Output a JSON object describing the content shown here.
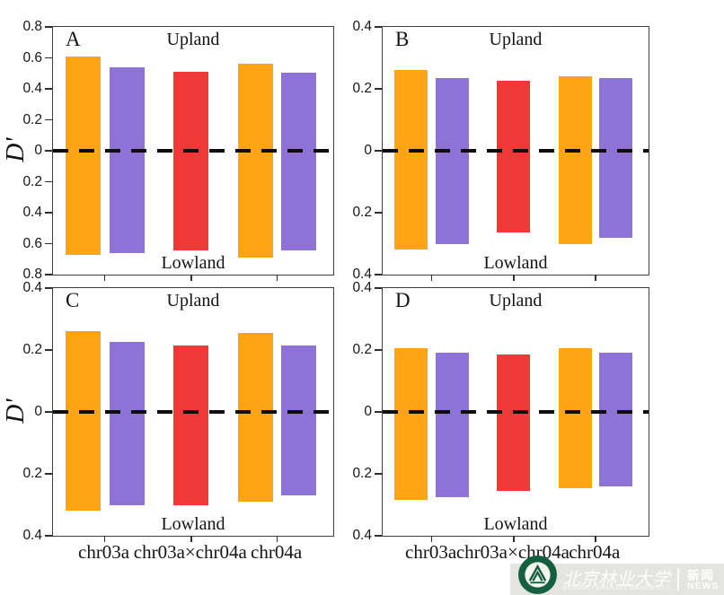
{
  "figure": {
    "watermark": {
      "university_cn": "北京林业大学",
      "university_en": "BEIJING FORESTRY UNIVERSITY",
      "news_cn": "新闻",
      "news_en": "NEWS"
    }
  },
  "chart_data": {
    "type": "bar",
    "title": "",
    "ylabel": "D'",
    "xlabel": "",
    "categories": [
      "chr03a",
      "chr03a×chr04a",
      "chr04a"
    ],
    "region_top_label": "Upland",
    "region_bottom_label": "Lowland",
    "zero_line": "dashed",
    "legend": "none",
    "grid": false,
    "colors": {
      "orange": "#FFA413",
      "purple": "#8E72D6",
      "red": "#EE3936",
      "axis": "#1a1a1a"
    },
    "bar_slots": [
      "orange",
      "purple",
      "red",
      "orange",
      "purple"
    ],
    "slot_category": [
      "chr03a",
      "chr03a",
      "chr03a×chr04a",
      "chr04a",
      "chr04a"
    ],
    "panels": [
      {
        "label": "A",
        "ylim": [
          -0.8,
          0.8
        ],
        "ytick_step": 0.2,
        "upland": [
          0.61,
          0.54,
          0.51,
          0.56,
          0.505
        ],
        "lowland": [
          -0.675,
          -0.66,
          -0.645,
          -0.69,
          -0.645
        ]
      },
      {
        "label": "B",
        "ylim": [
          -0.4,
          0.4
        ],
        "ytick_step": 0.2,
        "upland": [
          0.26,
          0.235,
          0.225,
          0.24,
          0.235
        ],
        "lowland": [
          -0.32,
          -0.3,
          -0.265,
          -0.3,
          -0.28
        ]
      },
      {
        "label": "C",
        "ylim": [
          -0.4,
          0.4
        ],
        "ytick_step": 0.2,
        "upland": [
          0.26,
          0.225,
          0.215,
          0.255,
          0.215
        ],
        "lowland": [
          -0.32,
          -0.3,
          -0.3,
          -0.29,
          -0.27
        ]
      },
      {
        "label": "D",
        "ylim": [
          -0.4,
          0.4
        ],
        "ytick_step": 0.2,
        "upland": [
          0.205,
          0.19,
          0.185,
          0.205,
          0.19
        ],
        "lowland": [
          -0.285,
          -0.275,
          -0.255,
          -0.245,
          -0.24
        ]
      }
    ]
  }
}
